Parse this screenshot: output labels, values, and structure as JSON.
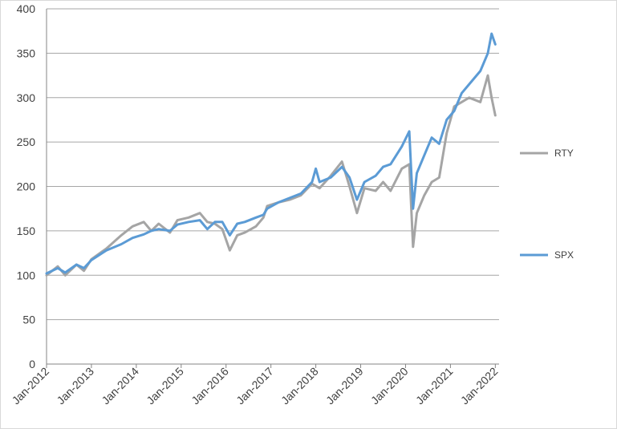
{
  "chart_data": {
    "type": "line",
    "title": "",
    "xlabel": "",
    "ylabel": "",
    "ylim": [
      0,
      400
    ],
    "yticks": [
      0,
      50,
      100,
      150,
      200,
      250,
      300,
      350,
      400
    ],
    "xlim": [
      "2012-01",
      "2022-02"
    ],
    "xticks": [
      {
        "date": "2012-01",
        "label": "Jan-2012"
      },
      {
        "date": "2013-01",
        "label": "Jan-2013"
      },
      {
        "date": "2014-01",
        "label": "Jan-2014"
      },
      {
        "date": "2015-01",
        "label": "Jan-2015"
      },
      {
        "date": "2016-01",
        "label": "Jan-2016"
      },
      {
        "date": "2017-01",
        "label": "Jan-2017"
      },
      {
        "date": "2018-01",
        "label": "Jan-2018"
      },
      {
        "date": "2019-01",
        "label": "Jan-2019"
      },
      {
        "date": "2020-01",
        "label": "Jan-2020"
      },
      {
        "date": "2021-01",
        "label": "Jan-2021"
      },
      {
        "date": "2022-01",
        "label": "Jan-2022"
      }
    ],
    "grid": true,
    "legend": "right",
    "series": [
      {
        "name": "RTY",
        "color": "#a5a5a5",
        "points": [
          [
            "2012-01",
            100
          ],
          [
            "2012-04",
            110
          ],
          [
            "2012-06",
            100
          ],
          [
            "2012-09",
            112
          ],
          [
            "2012-11",
            105
          ],
          [
            "2013-01",
            118
          ],
          [
            "2013-05",
            130
          ],
          [
            "2013-09",
            145
          ],
          [
            "2013-12",
            155
          ],
          [
            "2014-03",
            160
          ],
          [
            "2014-05",
            150
          ],
          [
            "2014-07",
            158
          ],
          [
            "2014-10",
            148
          ],
          [
            "2014-12",
            162
          ],
          [
            "2015-03",
            165
          ],
          [
            "2015-06",
            170
          ],
          [
            "2015-08",
            160
          ],
          [
            "2015-10",
            158
          ],
          [
            "2015-12",
            152
          ],
          [
            "2016-02",
            128
          ],
          [
            "2016-04",
            145
          ],
          [
            "2016-06",
            148
          ],
          [
            "2016-09",
            155
          ],
          [
            "2016-11",
            165
          ],
          [
            "2016-12",
            178
          ],
          [
            "2017-03",
            182
          ],
          [
            "2017-06",
            185
          ],
          [
            "2017-09",
            190
          ],
          [
            "2017-12",
            203
          ],
          [
            "2018-02",
            198
          ],
          [
            "2018-05",
            212
          ],
          [
            "2018-08",
            228
          ],
          [
            "2018-10",
            200
          ],
          [
            "2018-12",
            170
          ],
          [
            "2019-02",
            198
          ],
          [
            "2019-05",
            195
          ],
          [
            "2019-07",
            205
          ],
          [
            "2019-09",
            195
          ],
          [
            "2019-12",
            220
          ],
          [
            "2020-02",
            225
          ],
          [
            "2020-03",
            132
          ],
          [
            "2020-04",
            170
          ],
          [
            "2020-06",
            190
          ],
          [
            "2020-08",
            205
          ],
          [
            "2020-10",
            210
          ],
          [
            "2020-12",
            260
          ],
          [
            "2021-02",
            290
          ],
          [
            "2021-04",
            295
          ],
          [
            "2021-06",
            300
          ],
          [
            "2021-09",
            295
          ],
          [
            "2021-11",
            325
          ],
          [
            "2021-12",
            300
          ],
          [
            "2022-01",
            280
          ]
        ]
      },
      {
        "name": "SPX",
        "color": "#5b9bd5",
        "points": [
          [
            "2012-01",
            102
          ],
          [
            "2012-04",
            108
          ],
          [
            "2012-06",
            103
          ],
          [
            "2012-09",
            112
          ],
          [
            "2012-11",
            108
          ],
          [
            "2013-01",
            117
          ],
          [
            "2013-05",
            128
          ],
          [
            "2013-09",
            135
          ],
          [
            "2013-12",
            142
          ],
          [
            "2014-03",
            146
          ],
          [
            "2014-05",
            150
          ],
          [
            "2014-07",
            152
          ],
          [
            "2014-10",
            150
          ],
          [
            "2014-12",
            157
          ],
          [
            "2015-03",
            160
          ],
          [
            "2015-06",
            162
          ],
          [
            "2015-08",
            152
          ],
          [
            "2015-10",
            160
          ],
          [
            "2015-12",
            160
          ],
          [
            "2016-02",
            145
          ],
          [
            "2016-04",
            158
          ],
          [
            "2016-06",
            160
          ],
          [
            "2016-09",
            165
          ],
          [
            "2016-11",
            168
          ],
          [
            "2016-12",
            175
          ],
          [
            "2017-03",
            182
          ],
          [
            "2017-06",
            187
          ],
          [
            "2017-09",
            192
          ],
          [
            "2017-12",
            205
          ],
          [
            "2018-01",
            220
          ],
          [
            "2018-02",
            205
          ],
          [
            "2018-05",
            210
          ],
          [
            "2018-08",
            222
          ],
          [
            "2018-10",
            210
          ],
          [
            "2018-12",
            185
          ],
          [
            "2019-02",
            205
          ],
          [
            "2019-05",
            212
          ],
          [
            "2019-07",
            222
          ],
          [
            "2019-09",
            225
          ],
          [
            "2019-12",
            245
          ],
          [
            "2020-02",
            262
          ],
          [
            "2020-03",
            175
          ],
          [
            "2020-04",
            215
          ],
          [
            "2020-06",
            235
          ],
          [
            "2020-08",
            255
          ],
          [
            "2020-10",
            248
          ],
          [
            "2020-12",
            275
          ],
          [
            "2021-02",
            285
          ],
          [
            "2021-04",
            305
          ],
          [
            "2021-06",
            315
          ],
          [
            "2021-09",
            330
          ],
          [
            "2021-11",
            350
          ],
          [
            "2021-12",
            372
          ],
          [
            "2022-01",
            360
          ]
        ]
      }
    ]
  }
}
